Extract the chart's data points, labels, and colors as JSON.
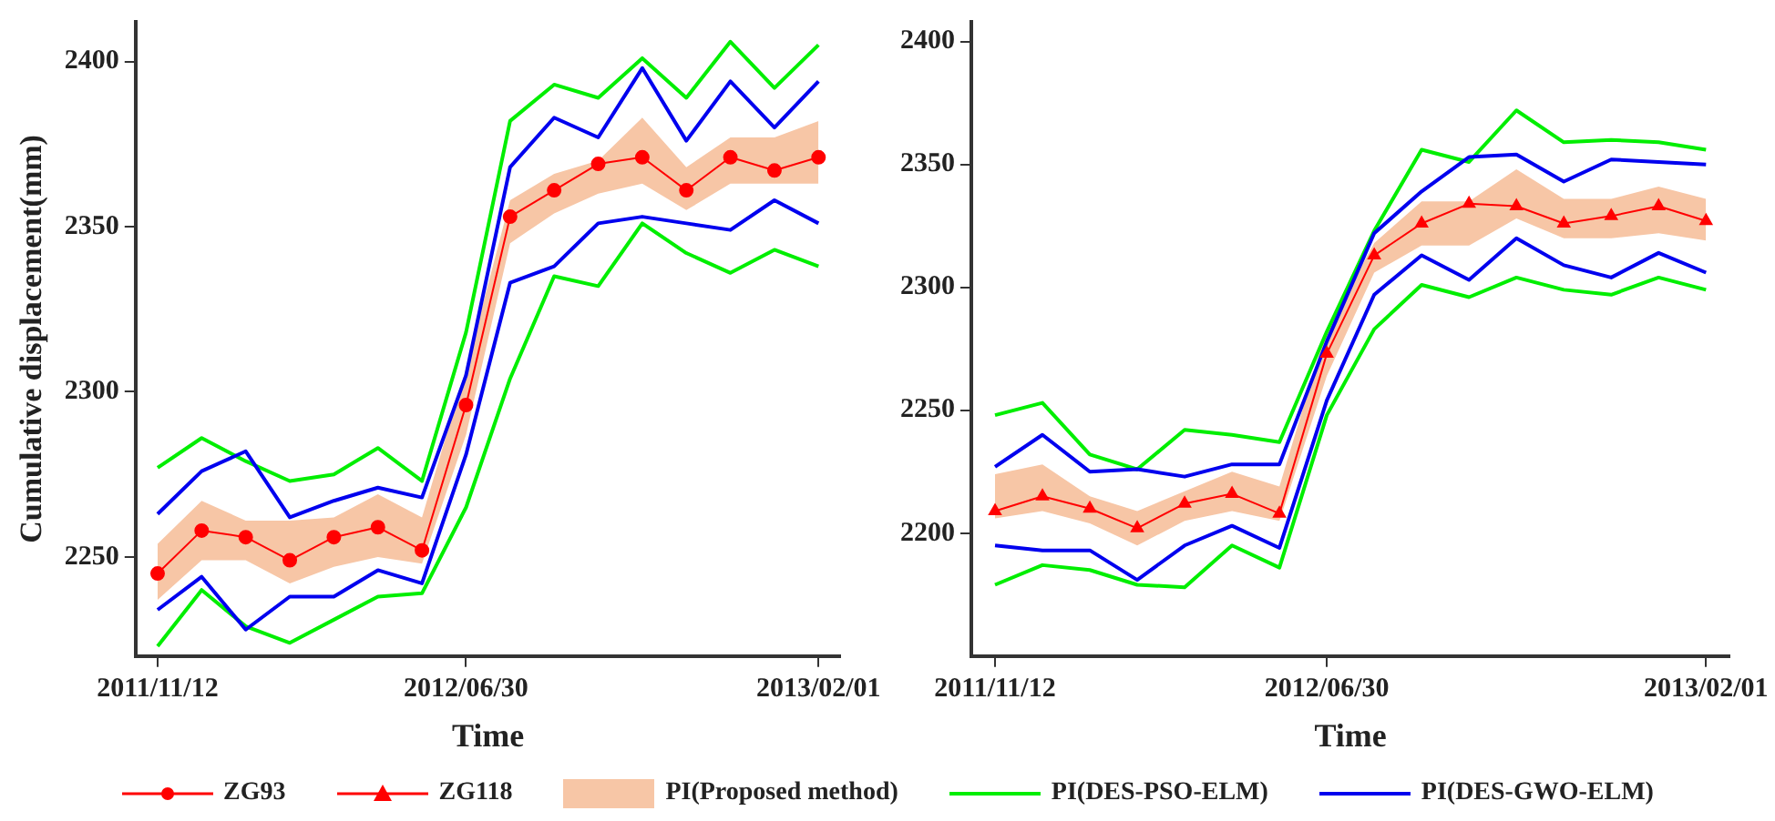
{
  "chart_data": [
    {
      "type": "line",
      "xlabel": "Time",
      "ylabel": "Cumulative displacement(mm)",
      "categories": [
        "2011/11/12",
        null,
        null,
        null,
        null,
        null,
        null,
        "2012/06/30",
        null,
        null,
        null,
        null,
        null,
        null,
        null,
        "2013/02/01"
      ],
      "ylim": [
        2220,
        2412
      ],
      "yticks": [
        2250,
        2300,
        2350,
        2400
      ],
      "grid": false,
      "legend": "bottom",
      "series": [
        {
          "name": "ZG93",
          "color": "#ff0000",
          "marker": "circle",
          "values": [
            2245,
            2258,
            2256,
            2249,
            2256,
            2259,
            2252,
            2296,
            2353,
            2361,
            2369,
            2371,
            2361,
            2371,
            2367,
            2371
          ]
        },
        {
          "name": "PI(Proposed method)",
          "type": "area",
          "color": "#f7c6a6",
          "values": [
            null,
            null,
            null,
            null,
            null,
            null,
            null,
            null,
            null,
            null,
            null,
            null,
            null,
            null,
            null,
            null
          ],
          "lower": [
            2237,
            2249,
            2249,
            2242,
            2247,
            2250,
            2248,
            2287,
            2345,
            2354,
            2360,
            2363,
            2355,
            2363,
            2363,
            2363
          ],
          "upper": [
            2254,
            2267,
            2261,
            2261,
            2262,
            2269,
            2262,
            2307,
            2358,
            2366,
            2370,
            2383,
            2368,
            2377,
            2377,
            2382
          ]
        },
        {
          "name": "PI(DES-PSO-ELM)",
          "color": "#00ee00",
          "values": [
            2277,
            2286,
            2279,
            2273,
            2275,
            2283,
            2273,
            2318,
            2382,
            2393,
            2389,
            2401,
            2389,
            2406,
            2392,
            2405
          ]
        },
        {
          "color": "#00ee00",
          "values": [
            2223,
            2240,
            2229,
            2224,
            2231,
            2238,
            2239,
            2265,
            2304,
            2335,
            2332,
            2351,
            2342,
            2336,
            2343,
            2338
          ]
        },
        {
          "name": "PI(DES-GWO-ELM)",
          "color": "#0000ee",
          "values": [
            2263,
            2276,
            2282,
            2262,
            2267,
            2271,
            2268,
            2305,
            2368,
            2383,
            2377,
            2398,
            2376,
            2394,
            2380,
            2394
          ]
        },
        {
          "color": "#0000ee",
          "values": [
            2234,
            2244,
            2228,
            2238,
            2238,
            2246,
            2242,
            2281,
            2333,
            2338,
            2351,
            2353,
            2351,
            2349,
            2358,
            2351
          ]
        }
      ]
    },
    {
      "type": "line",
      "xlabel": "Time",
      "categories": [
        "2011/11/12",
        null,
        null,
        null,
        null,
        null,
        null,
        "2012/06/30",
        null,
        null,
        null,
        null,
        null,
        null,
        null,
        "2013/02/01"
      ],
      "ylim": [
        2150,
        2408
      ],
      "yticks": [
        2200,
        2250,
        2300,
        2350,
        2400
      ],
      "grid": false,
      "legend": "bottom",
      "series": [
        {
          "name": "ZG118",
          "color": "#ff0000",
          "marker": "triangle",
          "values": [
            2209,
            2215,
            2210,
            2202,
            2212,
            2216,
            2208,
            2273,
            2313,
            2326,
            2334,
            2333,
            2326,
            2329,
            2333,
            2327
          ]
        },
        {
          "type": "area",
          "color": "#f7c6a6",
          "values": [
            null,
            null,
            null,
            null,
            null,
            null,
            null,
            null,
            null,
            null,
            null,
            null,
            null,
            null,
            null,
            null
          ],
          "lower": [
            2206,
            2209,
            2204,
            2195,
            2205,
            2209,
            2205,
            2264,
            2306,
            2317,
            2317,
            2328,
            2320,
            2320,
            2322,
            2319
          ],
          "upper": [
            2224,
            2228,
            2215,
            2209,
            2217,
            2225,
            2219,
            2283,
            2318,
            2335,
            2335,
            2348,
            2336,
            2336,
            2341,
            2336
          ]
        },
        {
          "name": "PI(DES-PSO-ELM)",
          "color": "#00ee00",
          "values": [
            2248,
            2253,
            2232,
            2226,
            2242,
            2240,
            2237,
            2282,
            2323,
            2356,
            2351,
            2372,
            2359,
            2360,
            2359,
            2356
          ]
        },
        {
          "color": "#00ee00",
          "values": [
            2179,
            2187,
            2185,
            2179,
            2178,
            2195,
            2186,
            2248,
            2283,
            2301,
            2296,
            2304,
            2299,
            2297,
            2304,
            2299
          ]
        },
        {
          "name": "PI(DES-GWO-ELM)",
          "color": "#0000ee",
          "values": [
            2227,
            2240,
            2225,
            2226,
            2223,
            2228,
            2228,
            2278,
            2322,
            2339,
            2353,
            2354,
            2343,
            2352,
            2351,
            2350
          ]
        },
        {
          "color": "#0000ee",
          "values": [
            2195,
            2193,
            2193,
            2181,
            2195,
            2203,
            2194,
            2254,
            2297,
            2313,
            2303,
            2320,
            2309,
            2304,
            2314,
            2306
          ]
        }
      ]
    }
  ]
}
